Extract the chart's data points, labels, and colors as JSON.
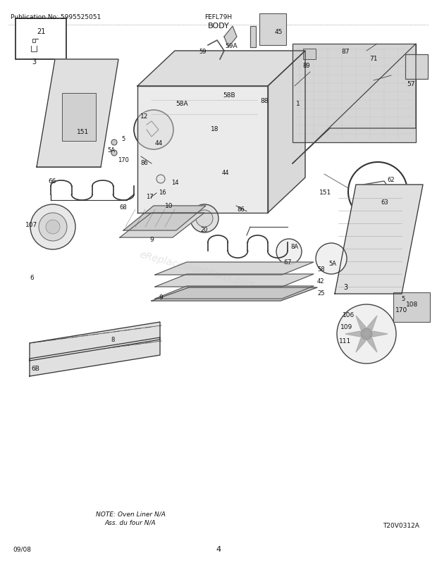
{
  "title": "BODY",
  "pub_no": "Publication No: 5995525051",
  "model": "FEFL79H",
  "date": "09/08",
  "page": "4",
  "watermark": "eReplacementParts.com",
  "diagram_ref": "T20V0312A",
  "note_line1": "NOTE: Oven Liner N/A",
  "note_line2": "Ass. du four N/A",
  "bg_color": "#ffffff",
  "lc": "#222222",
  "fig_width": 6.2,
  "fig_height": 8.03,
  "dpi": 100
}
